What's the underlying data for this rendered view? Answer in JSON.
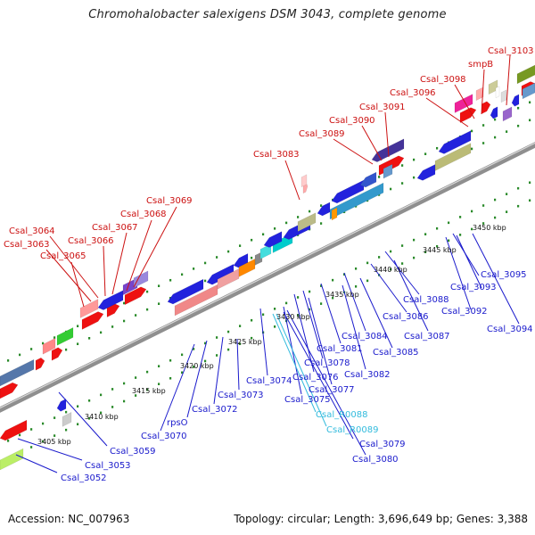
{
  "title": "Chromohalobacter salexigens DSM 3043, complete genome",
  "footer": {
    "accession": "Accession: NC_007963",
    "stats": "Topology: circular; Length: 3,696,649 bp; Genes: 3,388"
  },
  "ticks": [
    "3405 kbp",
    "3410 kbp",
    "3415 kbp",
    "3420 kbp",
    "3425 kbp",
    "3430 kbp",
    "3435 kbp",
    "3440 kbp",
    "3445 kbp",
    "3450 kbp"
  ],
  "top_labels": [
    "Csal_3103",
    "smpB",
    "Csal_3098",
    "Csal_3096",
    "Csal_3091",
    "Csal_3090",
    "Csal_3089",
    "Csal_3083",
    "Csal_3069",
    "Csal_3068",
    "Csal_3067",
    "Csal_3064",
    "Csal_3066",
    "Csal_3063",
    "Csal_3065"
  ],
  "bottom_labels": [
    "Csal_3095",
    "Csal_3088",
    "Csal_3093",
    "Csal_3092",
    "Csal_3087",
    "Csal_3094",
    "Csal_3086",
    "Csal_3084",
    "Csal_3085",
    "Csal_3081",
    "Csal_3082",
    "Csal_3078",
    "Csal_3076",
    "Csal_3077",
    "Csal_3074",
    "Csal_3075",
    "Csal_3073",
    "Csal_3072",
    "rpsO",
    "Csal_3070",
    "Csal_R0088",
    "Csal_R0089",
    "Csal_3079",
    "Csal_3080",
    "Csal_3059",
    "Csal_3053",
    "Csal_3052"
  ],
  "colors": {
    "top_label": "#cc1111",
    "bottom_label": "#1a1acc",
    "rna_label": "#33bbdd",
    "backbone": "#8f8f8f",
    "cds_forward": "#ee1111",
    "cds_reverse": "#1111dd"
  }
}
